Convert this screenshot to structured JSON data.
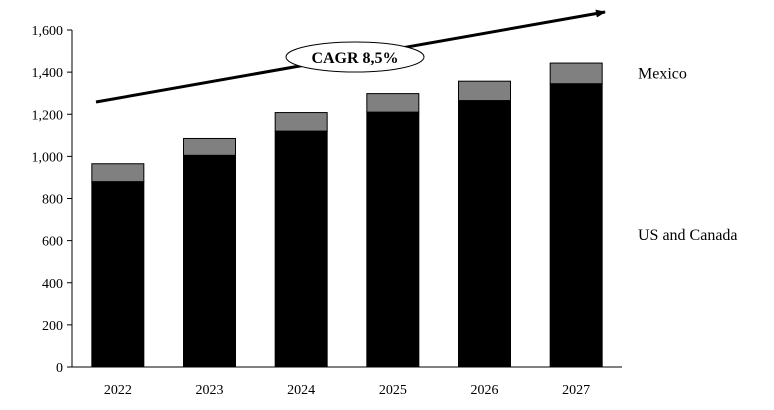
{
  "chart_data": {
    "type": "bar",
    "stacked": true,
    "categories": [
      "2022",
      "2023",
      "2024",
      "2025",
      "2026",
      "2027"
    ],
    "series": [
      {
        "name": "US and Canada",
        "values": [
          880,
          1005,
          1120,
          1210,
          1265,
          1345
        ],
        "color": "#000000"
      },
      {
        "name": "Mexico",
        "values": [
          85,
          80,
          88,
          88,
          92,
          98
        ],
        "color": "#808080"
      }
    ],
    "yticks": [
      "0",
      "200",
      "400",
      "600",
      "800",
      "1,000",
      "1,200",
      "1,400",
      "1,600"
    ],
    "ylim": [
      0,
      1600
    ],
    "grid": false,
    "legend_placement": "right",
    "title": "",
    "xlabel": "",
    "ylabel": "",
    "annotation": {
      "text": "CAGR 8,5%",
      "shape": "trend-arrow"
    }
  }
}
